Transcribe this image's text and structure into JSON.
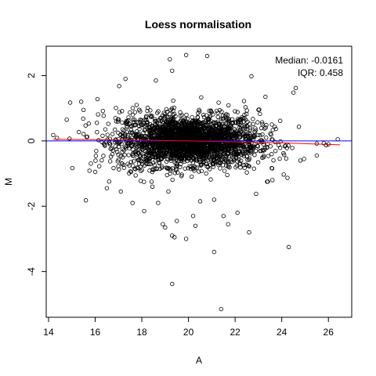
{
  "chart_data": {
    "type": "scatter",
    "title": "Loess normalisation",
    "xlabel": "A",
    "ylabel": "M",
    "xlim": [
      13.9,
      27.0
    ],
    "ylim": [
      -5.4,
      2.9
    ],
    "x_ticks": [
      14,
      16,
      18,
      20,
      22,
      24,
      26
    ],
    "y_ticks": [
      -4,
      -2,
      0,
      2
    ],
    "annotations": {
      "median": "Median: -0.0161",
      "iqr": "IQR: 0.458"
    },
    "reference_line": {
      "y": 0,
      "color": "#0000ff"
    },
    "loess_line": {
      "color": "#ff0000",
      "x": [
        14.2,
        16.0,
        18.0,
        20.0,
        22.0,
        24.0,
        26.5
      ],
      "y": [
        0.05,
        0.04,
        0.02,
        0.0,
        -0.03,
        -0.06,
        -0.12
      ]
    },
    "series": [
      {
        "marker": "open-circle",
        "core": {
          "count": 2600,
          "center": [
            20.0,
            0.0
          ],
          "sd_x": 1.5,
          "sd_y": 0.35
        },
        "points": [
          [
            19.2,
            2.5
          ],
          [
            19.9,
            2.63
          ],
          [
            20.8,
            2.6
          ],
          [
            17.3,
            1.9
          ],
          [
            22.7,
            1.98
          ],
          [
            19.3,
            2.15
          ],
          [
            18.6,
            1.85
          ],
          [
            24.6,
            1.62
          ],
          [
            24.5,
            1.48
          ],
          [
            15.4,
            1.2
          ],
          [
            16.1,
            1.28
          ],
          [
            15.5,
            0.95
          ],
          [
            23.3,
            1.35
          ],
          [
            14.2,
            0.18
          ],
          [
            14.9,
            0.07
          ],
          [
            15.3,
            0.27
          ],
          [
            26.4,
            0.05
          ],
          [
            26.0,
            -0.1
          ],
          [
            25.5,
            -0.08
          ],
          [
            25.8,
            -0.07
          ],
          [
            25.9,
            -0.13
          ],
          [
            25.5,
            -0.45
          ],
          [
            15.6,
            -1.82
          ],
          [
            16.5,
            -1.45
          ],
          [
            17.6,
            -1.9
          ],
          [
            18.1,
            -2.15
          ],
          [
            18.9,
            -2.55
          ],
          [
            19.3,
            -2.9
          ],
          [
            19.4,
            -2.95
          ],
          [
            19.5,
            -2.45
          ],
          [
            19.0,
            -2.65
          ],
          [
            19.9,
            -3.0
          ],
          [
            20.2,
            -2.3
          ],
          [
            20.3,
            -2.6
          ],
          [
            20.5,
            -1.85
          ],
          [
            21.5,
            -2.3
          ],
          [
            21.7,
            -2.55
          ],
          [
            22.6,
            -2.8
          ],
          [
            24.3,
            -3.25
          ],
          [
            21.1,
            -3.4
          ],
          [
            19.3,
            -4.38
          ],
          [
            21.4,
            -5.15
          ],
          [
            21.1,
            -1.8
          ],
          [
            22.1,
            -2.2
          ],
          [
            18.7,
            -1.9
          ],
          [
            17.1,
            -1.55
          ],
          [
            23.6,
            -1.2
          ],
          [
            22.9,
            -1.62
          ],
          [
            16.0,
            -0.95
          ],
          [
            24.8,
            -0.6
          ]
        ]
      }
    ]
  }
}
